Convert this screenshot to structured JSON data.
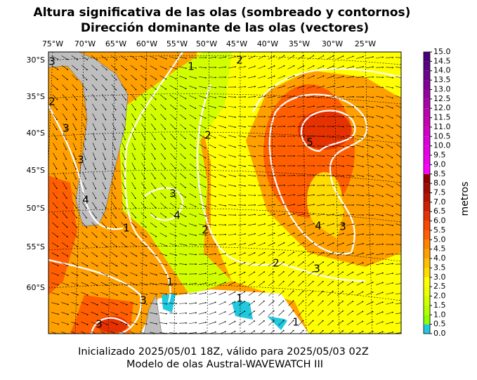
{
  "title": [
    "Altura significativa de las olas (sombreado y contornos)",
    "Dirección dominante de las olas (vectores)"
  ],
  "map": {
    "lon_labels": [
      "75°W",
      "70°W",
      "65°W",
      "60°W",
      "55°W",
      "50°W",
      "45°W",
      "40°W",
      "35°W",
      "30°W",
      "25°W"
    ],
    "lat_labels": [
      "30°S",
      "35°S",
      "40°S",
      "45°S",
      "50°S",
      "55°S",
      "60°S"
    ],
    "contour_labels": [
      "3",
      "2",
      "1",
      "2",
      "3",
      "2",
      "5",
      "3",
      "4",
      "3",
      "4",
      "1",
      "2",
      "4",
      "3",
      "2",
      "3",
      "1",
      "1",
      "3",
      "1",
      "3"
    ]
  },
  "colorbar": {
    "label": "metros",
    "lim": [
      0,
      15
    ],
    "ticks": [
      {
        "value": 0,
        "label": "0.0"
      },
      {
        "value": 0.5,
        "label": "0.5"
      },
      {
        "value": 1,
        "label": "1.0"
      },
      {
        "value": 1.5,
        "label": "1.5"
      },
      {
        "value": 2,
        "label": "2.0"
      },
      {
        "value": 2.5,
        "label": "2.5"
      },
      {
        "value": 3,
        "label": "3.0"
      },
      {
        "value": 3.5,
        "label": "3.5"
      },
      {
        "value": 4,
        "label": "4.0"
      },
      {
        "value": 4.5,
        "label": "4.5"
      },
      {
        "value": 5,
        "label": "5.0"
      },
      {
        "value": 5.5,
        "label": "5.5"
      },
      {
        "value": 6,
        "label": "6.0"
      },
      {
        "value": 6.5,
        "label": "6.5"
      },
      {
        "value": 7,
        "label": "7.0"
      },
      {
        "value": 7.5,
        "label": "7.5"
      },
      {
        "value": 8,
        "label": "8.0"
      },
      {
        "value": 8.5,
        "label": "8.5"
      },
      {
        "value": 9,
        "label": "9.0"
      },
      {
        "value": 9.5,
        "label": "9.5"
      },
      {
        "value": 10,
        "label": "10.0"
      },
      {
        "value": 10.5,
        "label": "10.5"
      },
      {
        "value": 11,
        "label": "11.0"
      },
      {
        "value": 11.5,
        "label": "11.5"
      },
      {
        "value": 12,
        "label": "12.0"
      },
      {
        "value": 12.5,
        "label": "12.5"
      },
      {
        "value": 13,
        "label": "13.0"
      },
      {
        "value": 13.5,
        "label": "13.5"
      },
      {
        "value": 14,
        "label": "14.0"
      },
      {
        "value": 14.5,
        "label": "14.5"
      },
      {
        "value": 15,
        "label": "15.0"
      }
    ],
    "colors": [
      "#22c8dc",
      "#8cff00",
      "#b4ff00",
      "#d2ff00",
      "#ecff00",
      "#ffff00",
      "#ffdc00",
      "#ffbe00",
      "#ffa000",
      "#ff8200",
      "#ff5f00",
      "#ff4600",
      "#e63200",
      "#d21e00",
      "#b41400",
      "#a00a00",
      "#8c0000",
      "#ff00ff",
      "#f000f0",
      "#e600e6",
      "#dc00dc",
      "#d200c8",
      "#c800b4",
      "#be00b4",
      "#aa00aa",
      "#9600a0",
      "#820096",
      "#6e008c",
      "#5a0082",
      "#4b0078"
    ]
  },
  "footer": [
    "Inicializado 2025/05/01 18Z, válido para 2025/05/03 02Z",
    "Modelo de olas Austral-WAVEWATCH III"
  ]
}
